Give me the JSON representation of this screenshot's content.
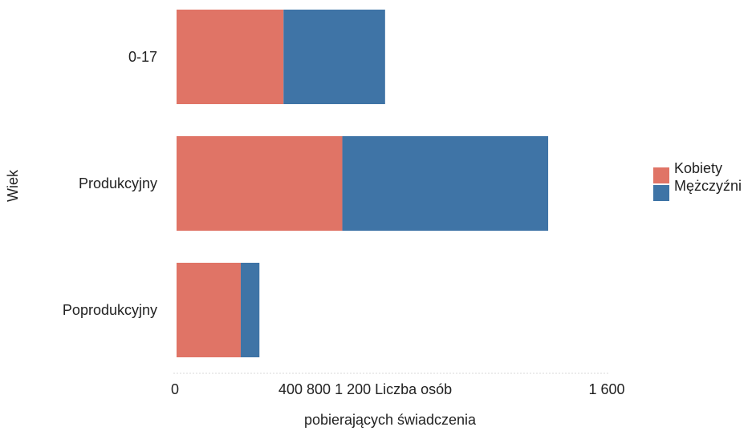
{
  "chart_data": {
    "type": "bar",
    "orientation": "horizontal",
    "stacked": true,
    "categories": [
      "0-17",
      "Produkcyjny",
      "Poprodukcyjny"
    ],
    "series": [
      {
        "name": "Kobiety",
        "values": [
          400,
          620,
          240
        ],
        "color": "#e07466"
      },
      {
        "name": "Mężczyźni",
        "values": [
          380,
          770,
          70
        ],
        "color": "#3f74a6"
      }
    ],
    "xlim": [
      0,
      1600
    ],
    "x_tick_values": [
      0,
      400,
      800,
      1200,
      1600
    ],
    "x_tick_text": [
      "0",
      "400 800 1 200 Liczba osób",
      "1 600"
    ],
    "xlabel": "pobierających świadczenia",
    "ylabel": "Wiek",
    "grid": false,
    "legend_position": "right"
  }
}
